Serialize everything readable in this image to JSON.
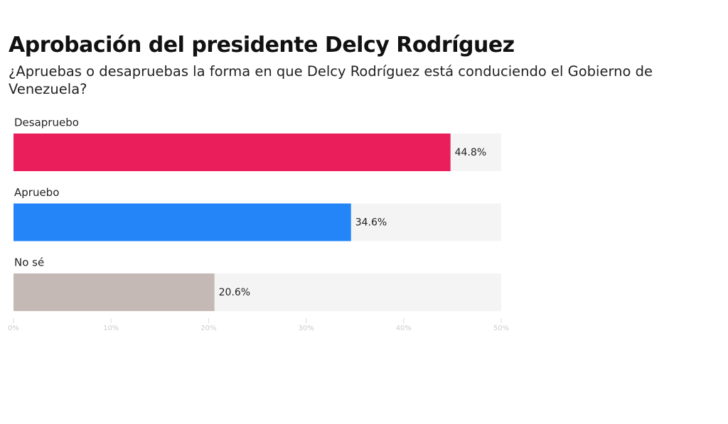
{
  "chart_data": {
    "type": "bar",
    "orientation": "horizontal",
    "title": "Aprobación del presidente Delcy Rodríguez",
    "subtitle": "¿Apruebas o desapruebas la forma en que Delcy Rodríguez está conduciendo el Gobierno de Venezuela?",
    "categories": [
      "Desapruebo",
      "Apruebo",
      "No sé"
    ],
    "values": [
      44.8,
      34.6,
      20.6
    ],
    "value_labels": [
      "44.8%",
      "34.6%",
      "20.6%"
    ],
    "colors": [
      "#e91e5a",
      "#2385f8",
      "#c5b9b5"
    ],
    "xlim": [
      0,
      50
    ],
    "xticks": [
      {
        "value": 0,
        "label": "0%"
      },
      {
        "value": 10,
        "label": "10%"
      },
      {
        "value": 20,
        "label": "20%"
      },
      {
        "value": 30,
        "label": "30%"
      },
      {
        "value": 40,
        "label": "40%"
      },
      {
        "value": 50,
        "label": "50%"
      }
    ]
  }
}
